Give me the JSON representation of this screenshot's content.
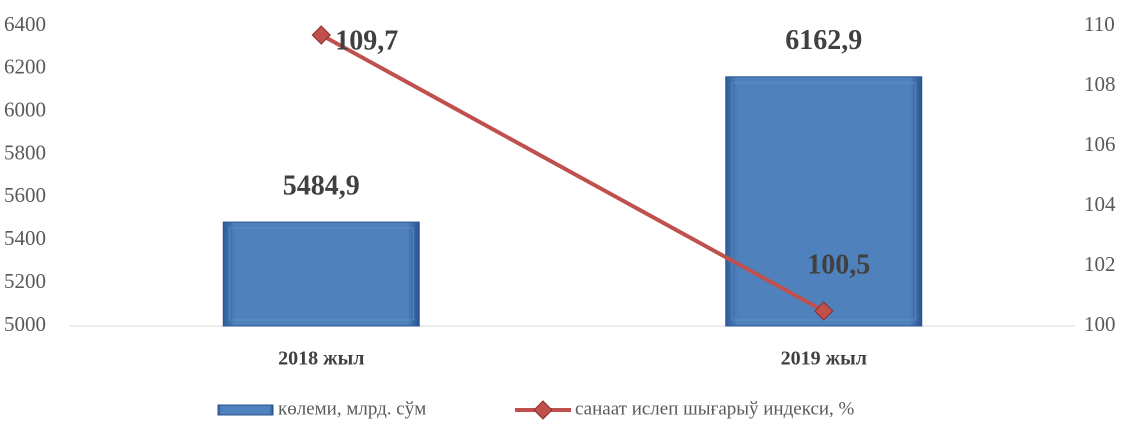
{
  "chart_data": {
    "type": "bar_line",
    "categories": [
      "2018 жыл",
      "2019 жыл"
    ],
    "series": [
      {
        "name": "көлеми, млрд. сўм",
        "type": "bar",
        "color": "#4f81bd",
        "values": [
          5484.9,
          6162.9
        ],
        "value_labels": [
          "5484,9",
          "6162,9"
        ]
      },
      {
        "name": "санаат ислеп шығарыў индекси, %",
        "type": "line",
        "axis": "y2",
        "color": "#c0504d",
        "values": [
          109.7,
          100.5
        ],
        "value_labels": [
          "109,7",
          "100,5"
        ]
      }
    ],
    "ylim": [
      5000,
      6400
    ],
    "yticks": [
      5000,
      5200,
      5400,
      5600,
      5800,
      6000,
      6200,
      6400
    ],
    "y2lim": [
      100,
      110
    ],
    "y2ticks": [
      100,
      102,
      104,
      106,
      108,
      110
    ],
    "legend": "bottom"
  }
}
